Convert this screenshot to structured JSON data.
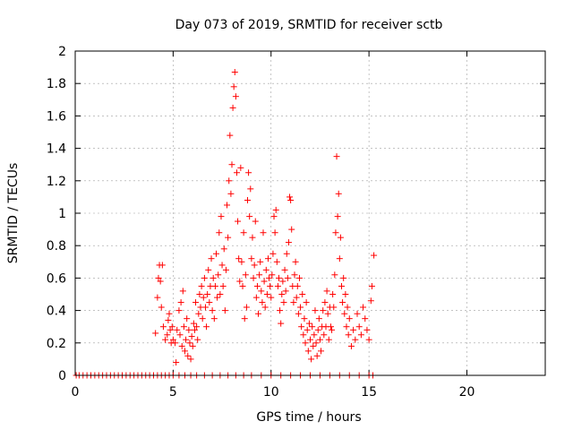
{
  "chart_data": {
    "type": "scatter",
    "title": "Day 073 of 2019, SRMTID for receiver sctb",
    "xlabel": "GPS time / hours",
    "ylabel": "SRMTID / TECUs",
    "xlim": [
      0,
      24
    ],
    "ylim": [
      0,
      2
    ],
    "xticks": [
      0,
      5,
      10,
      15,
      20
    ],
    "yticks": [
      0,
      0.2,
      0.4,
      0.6,
      0.8,
      1,
      1.2,
      1.4,
      1.6,
      1.8,
      2
    ],
    "grid": true,
    "marker": "plus",
    "color": "#ff0000",
    "series": [
      {
        "name": "SRMTID",
        "points": [
          [
            0.05,
            0
          ],
          [
            0.2,
            0
          ],
          [
            0.4,
            0
          ],
          [
            0.6,
            0
          ],
          [
            0.8,
            0
          ],
          [
            1.0,
            0
          ],
          [
            1.2,
            0
          ],
          [
            1.4,
            0
          ],
          [
            1.6,
            0
          ],
          [
            1.8,
            0
          ],
          [
            2.0,
            0
          ],
          [
            2.2,
            0
          ],
          [
            2.4,
            0
          ],
          [
            2.6,
            0
          ],
          [
            2.8,
            0
          ],
          [
            3.0,
            0
          ],
          [
            3.2,
            0
          ],
          [
            3.4,
            0
          ],
          [
            3.6,
            0
          ],
          [
            3.8,
            0
          ],
          [
            4.0,
            0
          ],
          [
            4.2,
            0
          ],
          [
            4.4,
            0
          ],
          [
            4.6,
            0
          ],
          [
            4.8,
            0
          ],
          [
            5.0,
            0
          ],
          [
            5.3,
            0
          ],
          [
            5.6,
            0
          ],
          [
            5.9,
            0
          ],
          [
            6.2,
            0
          ],
          [
            6.6,
            0
          ],
          [
            7.0,
            0
          ],
          [
            7.4,
            0
          ],
          [
            7.8,
            0
          ],
          [
            8.2,
            0
          ],
          [
            8.6,
            0
          ],
          [
            9.0,
            0
          ],
          [
            9.5,
            0
          ],
          [
            10.0,
            0
          ],
          [
            10.5,
            0
          ],
          [
            11.0,
            0
          ],
          [
            11.5,
            0
          ],
          [
            12.0,
            0
          ],
          [
            12.5,
            0
          ],
          [
            13.0,
            0
          ],
          [
            13.5,
            0
          ],
          [
            14.0,
            0
          ],
          [
            14.5,
            0
          ],
          [
            15.0,
            0
          ],
          [
            15.2,
            0
          ],
          [
            4.1,
            0.26
          ],
          [
            4.2,
            0.48
          ],
          [
            4.25,
            0.6
          ],
          [
            4.3,
            0.68
          ],
          [
            4.35,
            0.58
          ],
          [
            4.4,
            0.42
          ],
          [
            4.45,
            0.68
          ],
          [
            4.5,
            0.3
          ],
          [
            4.6,
            0.22
          ],
          [
            4.7,
            0.25
          ],
          [
            4.75,
            0.34
          ],
          [
            4.8,
            0.38
          ],
          [
            4.85,
            0.28
          ],
          [
            4.9,
            0.2
          ],
          [
            4.95,
            0.3
          ],
          [
            5.0,
            0.22
          ],
          [
            5.1,
            0.2
          ],
          [
            5.15,
            0.08
          ],
          [
            5.2,
            0.28
          ],
          [
            5.3,
            0.4
          ],
          [
            5.35,
            0.25
          ],
          [
            5.4,
            0.45
          ],
          [
            5.45,
            0.18
          ],
          [
            5.5,
            0.52
          ],
          [
            5.55,
            0.3
          ],
          [
            5.6,
            0.15
          ],
          [
            5.65,
            0.22
          ],
          [
            5.7,
            0.35
          ],
          [
            5.75,
            0.12
          ],
          [
            5.8,
            0.28
          ],
          [
            5.85,
            0.2
          ],
          [
            5.9,
            0.1
          ],
          [
            5.95,
            0.24
          ],
          [
            6.0,
            0.18
          ],
          [
            6.05,
            0.32
          ],
          [
            6.1,
            0.28
          ],
          [
            6.15,
            0.45
          ],
          [
            6.2,
            0.3
          ],
          [
            6.25,
            0.22
          ],
          [
            6.3,
            0.38
          ],
          [
            6.35,
            0.5
          ],
          [
            6.4,
            0.42
          ],
          [
            6.45,
            0.55
          ],
          [
            6.5,
            0.35
          ],
          [
            6.55,
            0.48
          ],
          [
            6.6,
            0.6
          ],
          [
            6.65,
            0.42
          ],
          [
            6.7,
            0.3
          ],
          [
            6.75,
            0.5
          ],
          [
            6.8,
            0.65
          ],
          [
            6.85,
            0.45
          ],
          [
            6.9,
            0.55
          ],
          [
            6.95,
            0.72
          ],
          [
            7.0,
            0.4
          ],
          [
            7.05,
            0.6
          ],
          [
            7.1,
            0.35
          ],
          [
            7.15,
            0.55
          ],
          [
            7.2,
            0.75
          ],
          [
            7.25,
            0.48
          ],
          [
            7.3,
            0.62
          ],
          [
            7.35,
            0.88
          ],
          [
            7.4,
            0.5
          ],
          [
            7.45,
            0.98
          ],
          [
            7.5,
            0.68
          ],
          [
            7.55,
            0.55
          ],
          [
            7.6,
            0.78
          ],
          [
            7.65,
            0.4
          ],
          [
            7.7,
            0.65
          ],
          [
            7.75,
            1.05
          ],
          [
            7.8,
            0.85
          ],
          [
            7.85,
            1.2
          ],
          [
            7.9,
            1.48
          ],
          [
            7.95,
            1.12
          ],
          [
            8.0,
            1.3
          ],
          [
            8.05,
            1.65
          ],
          [
            8.1,
            1.78
          ],
          [
            8.15,
            1.87
          ],
          [
            8.2,
            1.72
          ],
          [
            8.25,
            1.25
          ],
          [
            8.3,
            0.95
          ],
          [
            8.35,
            0.72
          ],
          [
            8.4,
            0.58
          ],
          [
            8.45,
            1.28
          ],
          [
            8.5,
            0.7
          ],
          [
            8.55,
            0.55
          ],
          [
            8.6,
            0.88
          ],
          [
            8.65,
            0.35
          ],
          [
            8.7,
            0.62
          ],
          [
            8.75,
            0.42
          ],
          [
            8.8,
            1.08
          ],
          [
            8.85,
            1.25
          ],
          [
            8.9,
            0.98
          ],
          [
            8.95,
            1.15
          ],
          [
            9.0,
            0.72
          ],
          [
            9.05,
            0.85
          ],
          [
            9.1,
            0.6
          ],
          [
            9.15,
            0.68
          ],
          [
            9.2,
            0.95
          ],
          [
            9.25,
            0.48
          ],
          [
            9.3,
            0.55
          ],
          [
            9.35,
            0.38
          ],
          [
            9.4,
            0.62
          ],
          [
            9.45,
            0.7
          ],
          [
            9.5,
            0.52
          ],
          [
            9.55,
            0.45
          ],
          [
            9.6,
            0.88
          ],
          [
            9.65,
            0.58
          ],
          [
            9.7,
            0.42
          ],
          [
            9.75,
            0.65
          ],
          [
            9.8,
            0.5
          ],
          [
            9.85,
            0.72
          ],
          [
            9.9,
            0.6
          ],
          [
            9.95,
            0.55
          ],
          [
            10.0,
            0.48
          ],
          [
            10.05,
            0.62
          ],
          [
            10.1,
            0.75
          ],
          [
            10.15,
            0.98
          ],
          [
            10.2,
            0.88
          ],
          [
            10.25,
            1.02
          ],
          [
            10.3,
            0.7
          ],
          [
            10.35,
            0.55
          ],
          [
            10.4,
            0.6
          ],
          [
            10.45,
            0.4
          ],
          [
            10.5,
            0.32
          ],
          [
            10.55,
            0.5
          ],
          [
            10.6,
            0.58
          ],
          [
            10.65,
            0.45
          ],
          [
            10.7,
            0.65
          ],
          [
            10.75,
            0.52
          ],
          [
            10.8,
            0.75
          ],
          [
            10.85,
            0.6
          ],
          [
            10.9,
            0.82
          ],
          [
            10.95,
            1.1
          ],
          [
            11.0,
            1.08
          ],
          [
            11.05,
            0.9
          ],
          [
            11.1,
            0.55
          ],
          [
            11.15,
            0.45
          ],
          [
            11.2,
            0.62
          ],
          [
            11.25,
            0.7
          ],
          [
            11.3,
            0.48
          ],
          [
            11.35,
            0.55
          ],
          [
            11.4,
            0.38
          ],
          [
            11.45,
            0.6
          ],
          [
            11.5,
            0.42
          ],
          [
            11.55,
            0.3
          ],
          [
            11.6,
            0.5
          ],
          [
            11.65,
            0.25
          ],
          [
            11.7,
            0.35
          ],
          [
            11.75,
            0.2
          ],
          [
            11.8,
            0.45
          ],
          [
            11.85,
            0.28
          ],
          [
            11.9,
            0.15
          ],
          [
            11.95,
            0.32
          ],
          [
            12.0,
            0.22
          ],
          [
            12.05,
            0.1
          ],
          [
            12.1,
            0.3
          ],
          [
            12.15,
            0.18
          ],
          [
            12.2,
            0.25
          ],
          [
            12.25,
            0.4
          ],
          [
            12.3,
            0.2
          ],
          [
            12.35,
            0.12
          ],
          [
            12.4,
            0.28
          ],
          [
            12.45,
            0.35
          ],
          [
            12.5,
            0.22
          ],
          [
            12.55,
            0.15
          ],
          [
            12.6,
            0.3
          ],
          [
            12.65,
            0.4
          ],
          [
            12.7,
            0.25
          ],
          [
            12.75,
            0.45
          ],
          [
            12.8,
            0.3
          ],
          [
            12.85,
            0.52
          ],
          [
            12.9,
            0.38
          ],
          [
            12.95,
            0.22
          ],
          [
            13.0,
            0.42
          ],
          [
            13.05,
            0.3
          ],
          [
            13.1,
            0.28
          ],
          [
            13.15,
            0.5
          ],
          [
            13.2,
            0.42
          ],
          [
            13.25,
            0.62
          ],
          [
            13.3,
            0.88
          ],
          [
            13.35,
            1.35
          ],
          [
            13.4,
            0.98
          ],
          [
            13.45,
            1.12
          ],
          [
            13.5,
            0.72
          ],
          [
            13.55,
            0.85
          ],
          [
            13.6,
            0.55
          ],
          [
            13.65,
            0.45
          ],
          [
            13.7,
            0.6
          ],
          [
            13.75,
            0.38
          ],
          [
            13.8,
            0.5
          ],
          [
            13.85,
            0.3
          ],
          [
            13.9,
            0.42
          ],
          [
            13.95,
            0.25
          ],
          [
            14.0,
            0.35
          ],
          [
            14.1,
            0.18
          ],
          [
            14.2,
            0.28
          ],
          [
            14.3,
            0.22
          ],
          [
            14.4,
            0.38
          ],
          [
            14.5,
            0.3
          ],
          [
            14.6,
            0.25
          ],
          [
            14.7,
            0.42
          ],
          [
            14.8,
            0.35
          ],
          [
            14.9,
            0.28
          ],
          [
            15.0,
            0.22
          ],
          [
            15.1,
            0.46
          ],
          [
            15.15,
            0.55
          ],
          [
            15.25,
            0.74
          ]
        ]
      }
    ]
  }
}
